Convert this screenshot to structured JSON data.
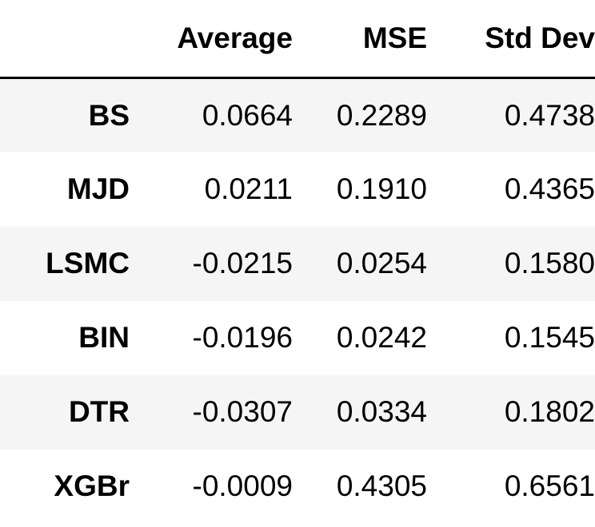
{
  "table": {
    "index_header": "",
    "columns": [
      "Average",
      "MSE",
      "Std Dev"
    ],
    "rows": [
      {
        "label": "BS",
        "values": [
          "0.0664",
          "0.2289",
          "0.4738"
        ]
      },
      {
        "label": "MJD",
        "values": [
          "0.0211",
          "0.1910",
          "0.4365"
        ]
      },
      {
        "label": "LSMC",
        "values": [
          "-0.0215",
          "0.0254",
          "0.1580"
        ]
      },
      {
        "label": "BIN",
        "values": [
          "-0.0196",
          "0.0242",
          "0.1545"
        ]
      },
      {
        "label": "DTR",
        "values": [
          "-0.0307",
          "0.0334",
          "0.1802"
        ]
      },
      {
        "label": "XGBr",
        "values": [
          "-0.0009",
          "0.4305",
          "0.6561"
        ]
      }
    ]
  },
  "colors": {
    "stripe": "#f5f5f5",
    "background": "#ffffff",
    "text": "#000000",
    "header_rule": "#000000"
  }
}
